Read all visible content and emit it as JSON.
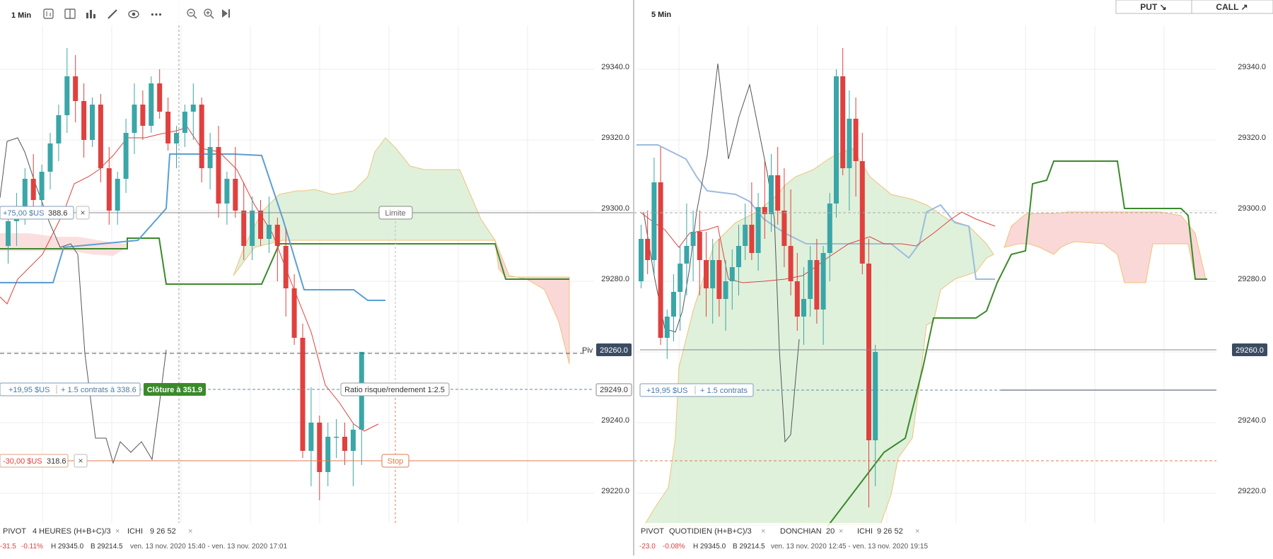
{
  "left_panel": {
    "timeframe": "1 Min",
    "toolbar_icons": [
      "candle-style-icon",
      "layout-icon",
      "indicators-icon",
      "draw-icon",
      "eye-icon",
      "more-icon",
      "zoom-out-icon",
      "zoom-in-icon",
      "play-end-icon"
    ],
    "orders": {
      "limit": {
        "pnl": "+75,00 $US",
        "price": "388.6",
        "tag": "Limite"
      },
      "position": {
        "pnl": "+19,95 $US",
        "contracts": "+ 1.5 contrats à 338.6",
        "close_label": "Clôture à 351.9"
      },
      "stop": {
        "pnl": "-30,00 $US",
        "price": "318.6",
        "tag": "Stop"
      },
      "close_x": "×"
    },
    "risk_reward_label": "Ratio risque/rendement 1:2.5",
    "pivot_label": "Piv",
    "legend": [
      {
        "name": "PIVOT",
        "params": "4 HEURES  (H+B+C)/3"
      },
      {
        "name": "ICHI",
        "params": "9  26  52"
      }
    ],
    "status": {
      "change": "-31.5",
      "pct": "-0.11%",
      "high": "H 29345.0",
      "low": "B 29214.5",
      "range": "ven. 13 nov. 2020 15:40 - ven. 13 nov. 2020 17:01"
    }
  },
  "price_axis": {
    "ticks": [
      "29340.0",
      "29320.0",
      "29300.0",
      "29280.0",
      "29260.0",
      "29249.0",
      "29240.0",
      "29220.0"
    ],
    "current_price": "29260.0"
  },
  "right_panel": {
    "timeframe": "5 Min",
    "buttons": {
      "put": "PUT ↘",
      "call": "CALL ↗"
    },
    "position": {
      "pnl": "+19,95 $US",
      "contracts": "+ 1.5 contrats"
    },
    "legend": [
      {
        "name": "PIVOT",
        "params": "QUOTIDIEN  (H+B+C)/3"
      },
      {
        "name": "DONCHIAN",
        "params": "20"
      },
      {
        "name": "ICHI",
        "params": "9  26  52"
      }
    ],
    "status": {
      "change": "-23.0",
      "pct": "-0.08%",
      "high": "H 29345.0",
      "low": "B 29214.5",
      "range": "ven. 13 nov. 2020 12:45 - ven. 13 nov. 2020 19:15"
    },
    "price_axis": {
      "ticks": [
        "29340.0",
        "29320.0",
        "29300.0",
        "29280.0",
        "29240.0",
        "29220.0"
      ],
      "current_price": "29260.0"
    }
  },
  "colors": {
    "up": "#3aa6a8",
    "down": "#e0403e",
    "cloud_green": "#d9eed5",
    "cloud_red": "#f9d4d4",
    "kijun": "#3a8a2a",
    "tenkan": "#5a9fd4",
    "price_line": "#5a8bb0",
    "stop": "#e07a4f",
    "close_green": "#3a8a2a"
  },
  "chart_data": [
    {
      "type": "candlestick",
      "title": "1 Min",
      "ylim": [
        29210,
        29350
      ],
      "series": [
        {
          "name": "price",
          "values": [
            [
              29290,
              29300,
              29285,
              29297
            ],
            [
              29297,
              29305,
              29290,
              29301
            ],
            [
              29301,
              29312,
              29296,
              29309
            ],
            [
              29309,
              29316,
              29300,
              29303
            ],
            [
              29303,
              29313,
              29298,
              29311
            ],
            [
              29311,
              29322,
              29306,
              29319
            ],
            [
              29319,
              29330,
              29314,
              29327
            ],
            [
              29327,
              29346,
              29322,
              29338
            ],
            [
              29338,
              29344,
              29325,
              29331
            ],
            [
              29331,
              29336,
              29315,
              29320
            ],
            [
              29320,
              29332,
              29318,
              29330
            ],
            [
              29330,
              29333,
              29308,
              29312
            ],
            [
              29312,
              29318,
              29296,
              29300
            ],
            [
              29300,
              29311,
              29296,
              29309
            ],
            [
              29309,
              29326,
              29305,
              29322
            ],
            [
              29322,
              29336,
              29316,
              29330
            ],
            [
              29330,
              29334,
              29320,
              29324
            ],
            [
              29324,
              29338,
              29322,
              29336
            ],
            [
              29336,
              29340,
              29326,
              29328
            ],
            [
              29328,
              29332,
              29317,
              29319
            ],
            [
              29319,
              29324,
              29312,
              29322
            ],
            [
              29322,
              29330,
              29318,
              29328
            ],
            [
              29328,
              29336,
              29320,
              29330
            ],
            [
              29330,
              29332,
              29308,
              29312
            ],
            [
              29312,
              29322,
              29306,
              29318
            ],
            [
              29318,
              29324,
              29298,
              29302
            ],
            [
              29302,
              29311,
              29296,
              29309
            ],
            [
              29309,
              29318,
              29298,
              29300
            ],
            [
              29300,
              29308,
              29286,
              29290
            ],
            [
              29290,
              29304,
              29286,
              29300
            ],
            [
              29300,
              29303,
              29290,
              29292
            ],
            [
              29292,
              29304,
              29288,
              29296
            ],
            [
              29296,
              29298,
              29280,
              29290
            ],
            [
              29290,
              29295,
              29270,
              29278
            ],
            [
              29278,
              29282,
              29262,
              29264
            ],
            [
              29264,
              29268,
              29230,
              29232
            ],
            [
              29232,
              29250,
              29222,
              29240
            ],
            [
              29240,
              29242,
              29218,
              29226
            ],
            [
              29226,
              29240,
              29222,
              29236
            ],
            [
              29236,
              29241,
              29230,
              29236
            ],
            [
              29236,
              29240,
              29228,
              29232
            ],
            [
              29232,
              29240,
              29222,
              29238
            ],
            [
              29238,
              29252,
              29228,
              29260
            ]
          ]
        }
      ]
    },
    {
      "type": "candlestick",
      "title": "5 Min",
      "ylim": [
        29210,
        29350
      ],
      "series": [
        {
          "name": "price",
          "values": [
            [
              29280,
              29296,
              29278,
              29292
            ],
            [
              29292,
              29300,
              29282,
              29286
            ],
            [
              29286,
              29315,
              29282,
              29308
            ],
            [
              29308,
              29318,
              29262,
              29264
            ],
            [
              29264,
              29272,
              29258,
              29270
            ],
            [
              29270,
              29282,
              29263,
              29277
            ],
            [
              29277,
              29290,
              29266,
              29285
            ],
            [
              29285,
              29302,
              29276,
              29290
            ],
            [
              29290,
              29300,
              29280,
              29294
            ],
            [
              29294,
              29300,
              29276,
              29286
            ],
            [
              29286,
              29294,
              29270,
              29278
            ],
            [
              29278,
              29292,
              29268,
              29286
            ],
            [
              29286,
              29292,
              29270,
              29275
            ],
            [
              29275,
              29286,
              29266,
              29280
            ],
            [
              29280,
              29289,
              29272,
              29284
            ],
            [
              29284,
              29296,
              29276,
              29290
            ],
            [
              29290,
              29302,
              29286,
              29296
            ],
            [
              29296,
              29308,
              29286,
              29288
            ],
            [
              29288,
              29305,
              29283,
              29301
            ],
            [
              29301,
              29314,
              29292,
              29299
            ],
            [
              29299,
              29316,
              29294,
              29310
            ],
            [
              29310,
              29318,
              29296,
              29300
            ],
            [
              29300,
              29312,
              29284,
              29290
            ],
            [
              29290,
              29306,
              29276,
              29280
            ],
            [
              29280,
              29288,
              29266,
              29270
            ],
            [
              29270,
              29284,
              29262,
              29275
            ],
            [
              29275,
              29290,
              29270,
              29286
            ],
            [
              29286,
              29292,
              29268,
              29272
            ],
            [
              29272,
              29290,
              29262,
              29288
            ],
            [
              29288,
              29305,
              29280,
              29302
            ],
            [
              29302,
              29340,
              29298,
              29338
            ],
            [
              29338,
              29346,
              29310,
              29312
            ],
            [
              29312,
              29334,
              29300,
              29326
            ],
            [
              29326,
              29332,
              29304,
              29314
            ],
            [
              29314,
              29322,
              29282,
              29285
            ],
            [
              29285,
              29292,
              29216,
              29235
            ],
            [
              29235,
              29262,
              29222,
              29260
            ]
          ]
        }
      ]
    }
  ]
}
